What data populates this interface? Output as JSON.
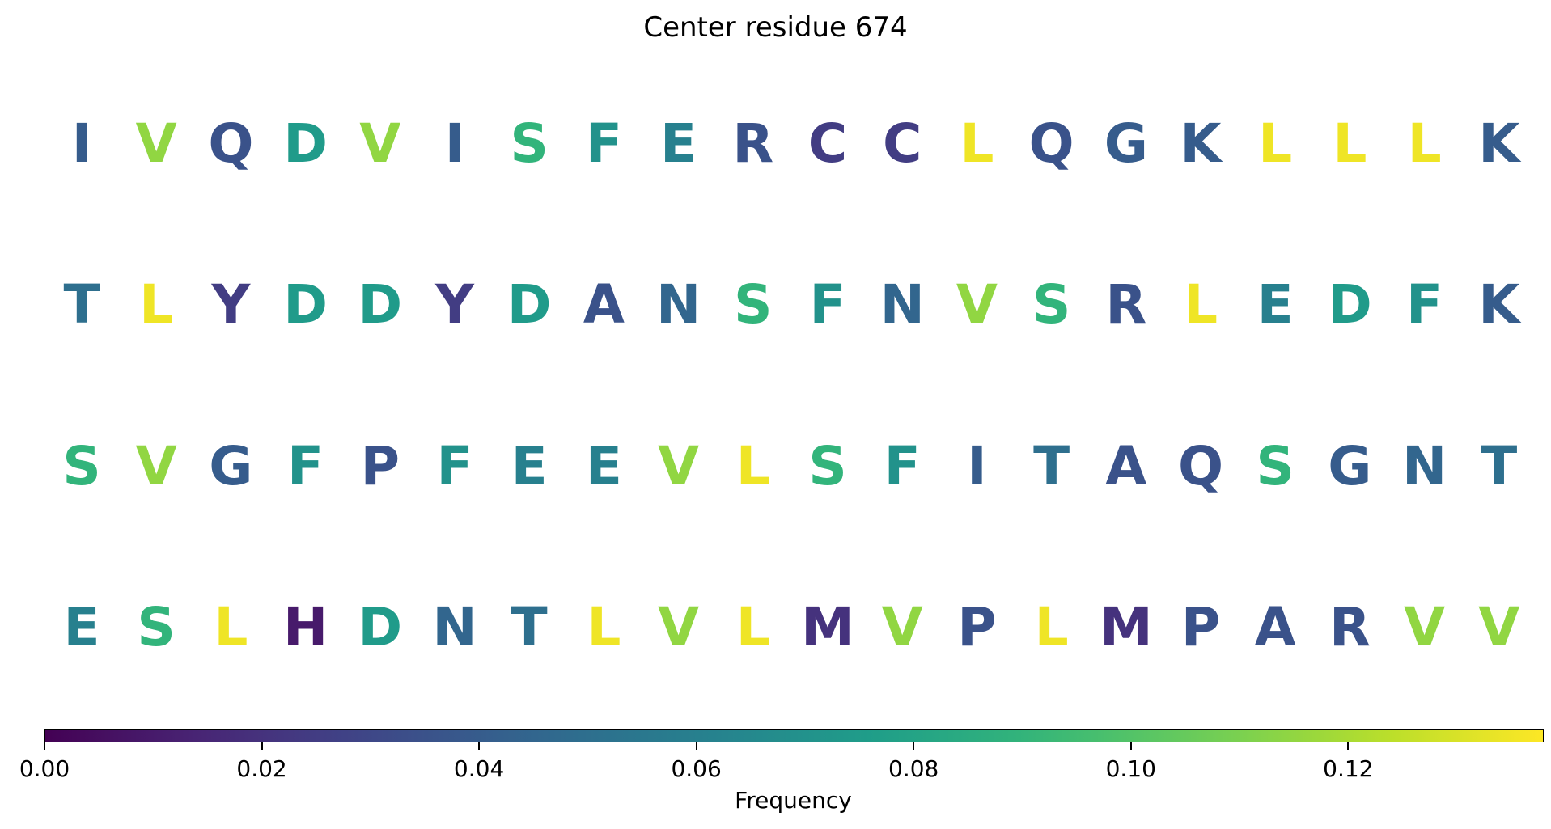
{
  "chart_data": {
    "type": "heatmap",
    "title": "Center residue 674",
    "rows": [
      {
        "letters": [
          "I",
          "V",
          "Q",
          "D",
          "V",
          "I",
          "S",
          "F",
          "E",
          "R",
          "C",
          "C",
          "L",
          "Q",
          "G",
          "K",
          "L",
          "L",
          "L",
          "K"
        ],
        "values": [
          0.04,
          0.115,
          0.035,
          0.075,
          0.115,
          0.04,
          0.09,
          0.07,
          0.06,
          0.035,
          0.025,
          0.025,
          0.135,
          0.035,
          0.04,
          0.04,
          0.135,
          0.135,
          0.135,
          0.04
        ]
      },
      {
        "letters": [
          "T",
          "L",
          "Y",
          "D",
          "D",
          "Y",
          "D",
          "A",
          "N",
          "S",
          "F",
          "N",
          "V",
          "S",
          "R",
          "L",
          "E",
          "D",
          "F",
          "K"
        ],
        "values": [
          0.05,
          0.135,
          0.025,
          0.075,
          0.075,
          0.025,
          0.075,
          0.035,
          0.045,
          0.09,
          0.07,
          0.045,
          0.115,
          0.09,
          0.035,
          0.135,
          0.06,
          0.075,
          0.07,
          0.04
        ]
      },
      {
        "letters": [
          "S",
          "V",
          "G",
          "F",
          "P",
          "F",
          "E",
          "E",
          "V",
          "L",
          "S",
          "F",
          "I",
          "T",
          "A",
          "Q",
          "S",
          "G",
          "N",
          "T"
        ],
        "values": [
          0.09,
          0.115,
          0.04,
          0.07,
          0.035,
          0.07,
          0.06,
          0.06,
          0.115,
          0.135,
          0.09,
          0.07,
          0.04,
          0.05,
          0.035,
          0.035,
          0.09,
          0.04,
          0.045,
          0.05
        ]
      },
      {
        "letters": [
          "E",
          "S",
          "L",
          "H",
          "D",
          "N",
          "T",
          "L",
          "V",
          "L",
          "M",
          "V",
          "P",
          "L",
          "M",
          "P",
          "A",
          "R",
          "V",
          "V"
        ],
        "values": [
          0.06,
          0.09,
          0.135,
          0.01,
          0.075,
          0.045,
          0.05,
          0.135,
          0.115,
          0.135,
          0.02,
          0.115,
          0.035,
          0.135,
          0.02,
          0.035,
          0.035,
          0.035,
          0.115,
          0.115
        ]
      }
    ],
    "colorbar": {
      "label": "Frequency",
      "range": [
        0,
        0.138
      ],
      "ticks": [
        0.0,
        0.02,
        0.04,
        0.06,
        0.08,
        0.1,
        0.12
      ],
      "tick_labels": [
        "0.00",
        "0.02",
        "0.04",
        "0.06",
        "0.08",
        "0.10",
        "0.12"
      ],
      "colormap": "viridis"
    }
  }
}
